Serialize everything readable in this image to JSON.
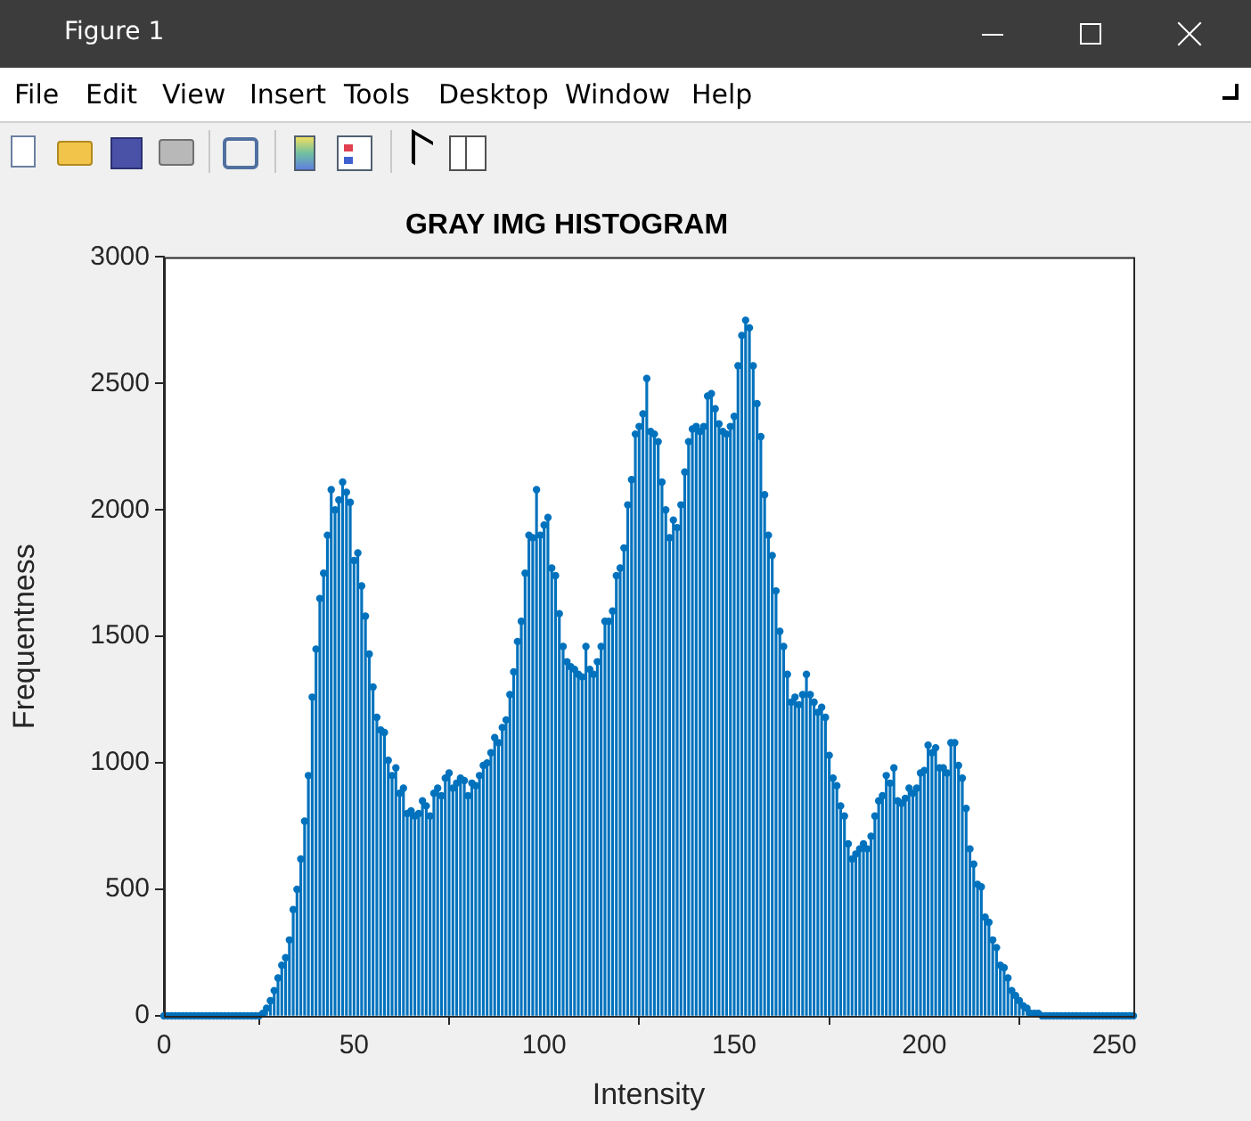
{
  "chart_data": {
    "type": "lollipop",
    "title": "GRAY IMG HISTOGRAM",
    "xlabel": "Intensity",
    "ylabel": "Frequentness",
    "annotations": [
      "Figure 1",
      "File",
      "Edit",
      "View",
      "Insert",
      "Tools",
      "Desktop",
      "Window",
      "Help"
    ],
    "x": [
      0,
      1,
      2,
      3,
      4,
      5,
      6,
      7,
      8,
      9,
      10,
      11,
      12,
      13,
      14,
      15,
      16,
      17,
      18,
      19,
      20,
      21,
      22,
      23,
      24,
      25,
      26,
      27,
      28,
      29,
      30,
      31,
      32,
      33,
      34,
      35,
      36,
      37,
      38,
      39,
      40,
      41,
      42,
      43,
      44,
      45,
      46,
      47,
      48,
      49,
      50,
      51,
      52,
      53,
      54,
      55,
      56,
      57,
      58,
      59,
      60,
      61,
      62,
      63,
      64,
      65,
      66,
      67,
      68,
      69,
      70,
      71,
      72,
      73,
      74,
      75,
      76,
      77,
      78,
      79,
      80,
      81,
      82,
      83,
      84,
      85,
      86,
      87,
      88,
      89,
      90,
      91,
      92,
      93,
      94,
      95,
      96,
      97,
      98,
      99,
      100,
      101,
      102,
      103,
      104,
      105,
      106,
      107,
      108,
      109,
      110,
      111,
      112,
      113,
      114,
      115,
      116,
      117,
      118,
      119,
      120,
      121,
      122,
      123,
      124,
      125,
      126,
      127,
      128,
      129,
      130,
      131,
      132,
      133,
      134,
      135,
      136,
      137,
      138,
      139,
      140,
      141,
      142,
      143,
      144,
      145,
      146,
      147,
      148,
      149,
      150,
      151,
      152,
      153,
      154,
      155,
      156,
      157,
      158,
      159,
      160,
      161,
      162,
      163,
      164,
      165,
      166,
      167,
      168,
      169,
      170,
      171,
      172,
      173,
      174,
      175,
      176,
      177,
      178,
      179,
      180,
      181,
      182,
      183,
      184,
      185,
      186,
      187,
      188,
      189,
      190,
      191,
      192,
      193,
      194,
      195,
      196,
      197,
      198,
      199,
      200,
      201,
      202,
      203,
      204,
      205,
      206,
      207,
      208,
      209,
      210,
      211,
      212,
      213,
      214,
      215,
      216,
      217,
      218,
      219,
      220,
      221,
      222,
      223,
      224,
      225,
      226,
      227,
      228,
      229,
      230,
      231,
      232,
      233,
      234,
      235,
      236,
      237,
      238,
      239,
      240,
      241,
      242,
      243,
      244,
      245,
      246,
      247,
      248,
      249,
      250,
      251,
      252,
      253,
      254,
      255
    ],
    "values": [
      0,
      0,
      0,
      0,
      0,
      0,
      0,
      0,
      0,
      0,
      0,
      0,
      0,
      0,
      0,
      0,
      0,
      0,
      0,
      0,
      0,
      0,
      0,
      0,
      0,
      0,
      10,
      30,
      60,
      100,
      150,
      200,
      230,
      300,
      420,
      500,
      620,
      770,
      950,
      1260,
      1450,
      1650,
      1750,
      1900,
      2080,
      2000,
      2040,
      2110,
      2070,
      2030,
      1800,
      1830,
      1700,
      1580,
      1430,
      1300,
      1180,
      1130,
      1120,
      1010,
      950,
      980,
      880,
      900,
      800,
      810,
      790,
      800,
      850,
      830,
      790,
      880,
      900,
      870,
      940,
      960,
      900,
      920,
      940,
      930,
      870,
      920,
      910,
      950,
      990,
      1000,
      1040,
      1100,
      1080,
      1140,
      1170,
      1270,
      1360,
      1480,
      1560,
      1750,
      1900,
      1890,
      2080,
      1900,
      1940,
      1970,
      1770,
      1740,
      1590,
      1460,
      1400,
      1380,
      1370,
      1350,
      1340,
      1460,
      1370,
      1350,
      1400,
      1460,
      1560,
      1560,
      1600,
      1740,
      1770,
      1850,
      2020,
      2120,
      2300,
      2330,
      2380,
      2520,
      2310,
      2300,
      2270,
      2110,
      2000,
      1890,
      1960,
      1930,
      2020,
      2150,
      2270,
      2320,
      2330,
      2310,
      2330,
      2450,
      2460,
      2400,
      2340,
      2310,
      2300,
      2330,
      2370,
      2570,
      2690,
      2750,
      2720,
      2570,
      2420,
      2290,
      2060,
      1900,
      1820,
      1680,
      1520,
      1460,
      1350,
      1240,
      1260,
      1230,
      1270,
      1350,
      1270,
      1240,
      1200,
      1220,
      1180,
      1030,
      940,
      910,
      830,
      790,
      680,
      620,
      640,
      660,
      680,
      660,
      710,
      790,
      850,
      870,
      950,
      920,
      980,
      850,
      840,
      860,
      900,
      880,
      900,
      960,
      970,
      1070,
      1040,
      1060,
      980,
      980,
      960,
      1080,
      1080,
      990,
      940,
      820,
      660,
      600,
      520,
      510,
      390,
      370,
      300,
      270,
      200,
      190,
      150,
      100,
      80,
      60,
      40,
      30,
      10,
      10,
      10,
      0,
      0,
      0,
      0,
      0,
      0,
      0,
      0,
      0,
      0,
      0,
      0,
      0,
      0,
      0,
      0,
      0,
      0,
      0,
      0,
      0,
      0,
      0,
      0,
      0
    ],
    "color": "#0072bd",
    "marker": "circle",
    "xlim": [
      0,
      255
    ],
    "xticks": [
      0,
      50,
      100,
      150,
      200,
      250
    ],
    "ylim": [
      0,
      3000
    ],
    "yticks": [
      0,
      500,
      1000,
      1500,
      2000,
      2500,
      3000
    ]
  }
}
